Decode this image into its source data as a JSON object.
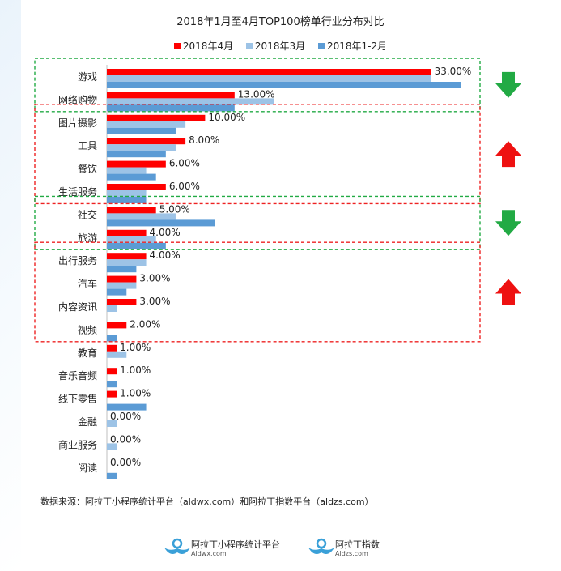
{
  "title": "2018年1月至4月TOP100榜单行业分布对比",
  "legend": [
    {
      "label": "2018年4月",
      "color": "#ff0000"
    },
    {
      "label": "2018年3月",
      "color": "#9dc3e6"
    },
    {
      "label": "2018年1-2月",
      "color": "#5b9bd5"
    }
  ],
  "chart_data": {
    "type": "bar",
    "orientation": "horizontal",
    "title": "2018年1月至4月TOP100榜单行业分布对比",
    "categories": [
      "游戏",
      "网络购物",
      "图片摄影",
      "工具",
      "餐饮",
      "生活服务",
      "社交",
      "旅游",
      "出行服务",
      "汽车",
      "内容资讯",
      "视频",
      "教育",
      "音乐音频",
      "线下零售",
      "金融",
      "商业服务",
      "阅读"
    ],
    "series": [
      {
        "name": "2018年4月",
        "color": "#ff0000",
        "values": [
          33,
          13,
          10,
          8,
          6,
          6,
          5,
          4,
          4,
          3,
          3,
          2,
          1,
          1,
          1,
          0,
          0,
          0
        ]
      },
      {
        "name": "2018年3月",
        "color": "#9dc3e6",
        "values": [
          33,
          17,
          8,
          7,
          4,
          4,
          7,
          5,
          4,
          3,
          1,
          0,
          2,
          0,
          0,
          1,
          1,
          0
        ]
      },
      {
        "name": "2018年1-2月",
        "color": "#5b9bd5",
        "values": [
          36,
          13,
          7,
          6,
          5,
          4,
          11,
          6,
          3,
          2,
          0,
          1,
          0,
          1,
          4,
          0,
          0,
          1
        ]
      }
    ],
    "data_labels": [
      "33.00%",
      "13.00%",
      "10.00%",
      "8.00%",
      "6.00%",
      "6.00%",
      "5.00%",
      "4.00%",
      "4.00%",
      "3.00%",
      "3.00%",
      "2.00%",
      "1.00%",
      "1.00%",
      "1.00%",
      "0.00%",
      "0.00%",
      "0.00%"
    ],
    "xlim": [
      0,
      36
    ],
    "grid": false,
    "legend_position": "top",
    "groups": [
      {
        "rows": [
          0,
          1
        ],
        "box_color": "#22aa44",
        "trend": "down",
        "arrow_color": "#22aa44"
      },
      {
        "rows": [
          2,
          5
        ],
        "box_color": "#ee2222",
        "trend": "up",
        "arrow_color": "#ee1111"
      },
      {
        "rows": [
          6,
          7
        ],
        "box_color": "#22aa44",
        "trend": "down",
        "arrow_color": "#22aa44"
      },
      {
        "rows": [
          8,
          11
        ],
        "box_color": "#ee2222",
        "trend": "up",
        "arrow_color": "#ee1111"
      }
    ]
  },
  "source_text": "数据来源：阿拉丁小程序统计平台（aldwx.com）和阿拉丁指数平台（aldzs.com）",
  "footer": {
    "logo1_name": "阿拉丁小程序统计平台",
    "logo1_sub": "Aldwx.com",
    "logo2_name": "阿拉丁指数",
    "logo2_sub": "Aldzs.com",
    "logo_color": "#3aa0d8"
  }
}
